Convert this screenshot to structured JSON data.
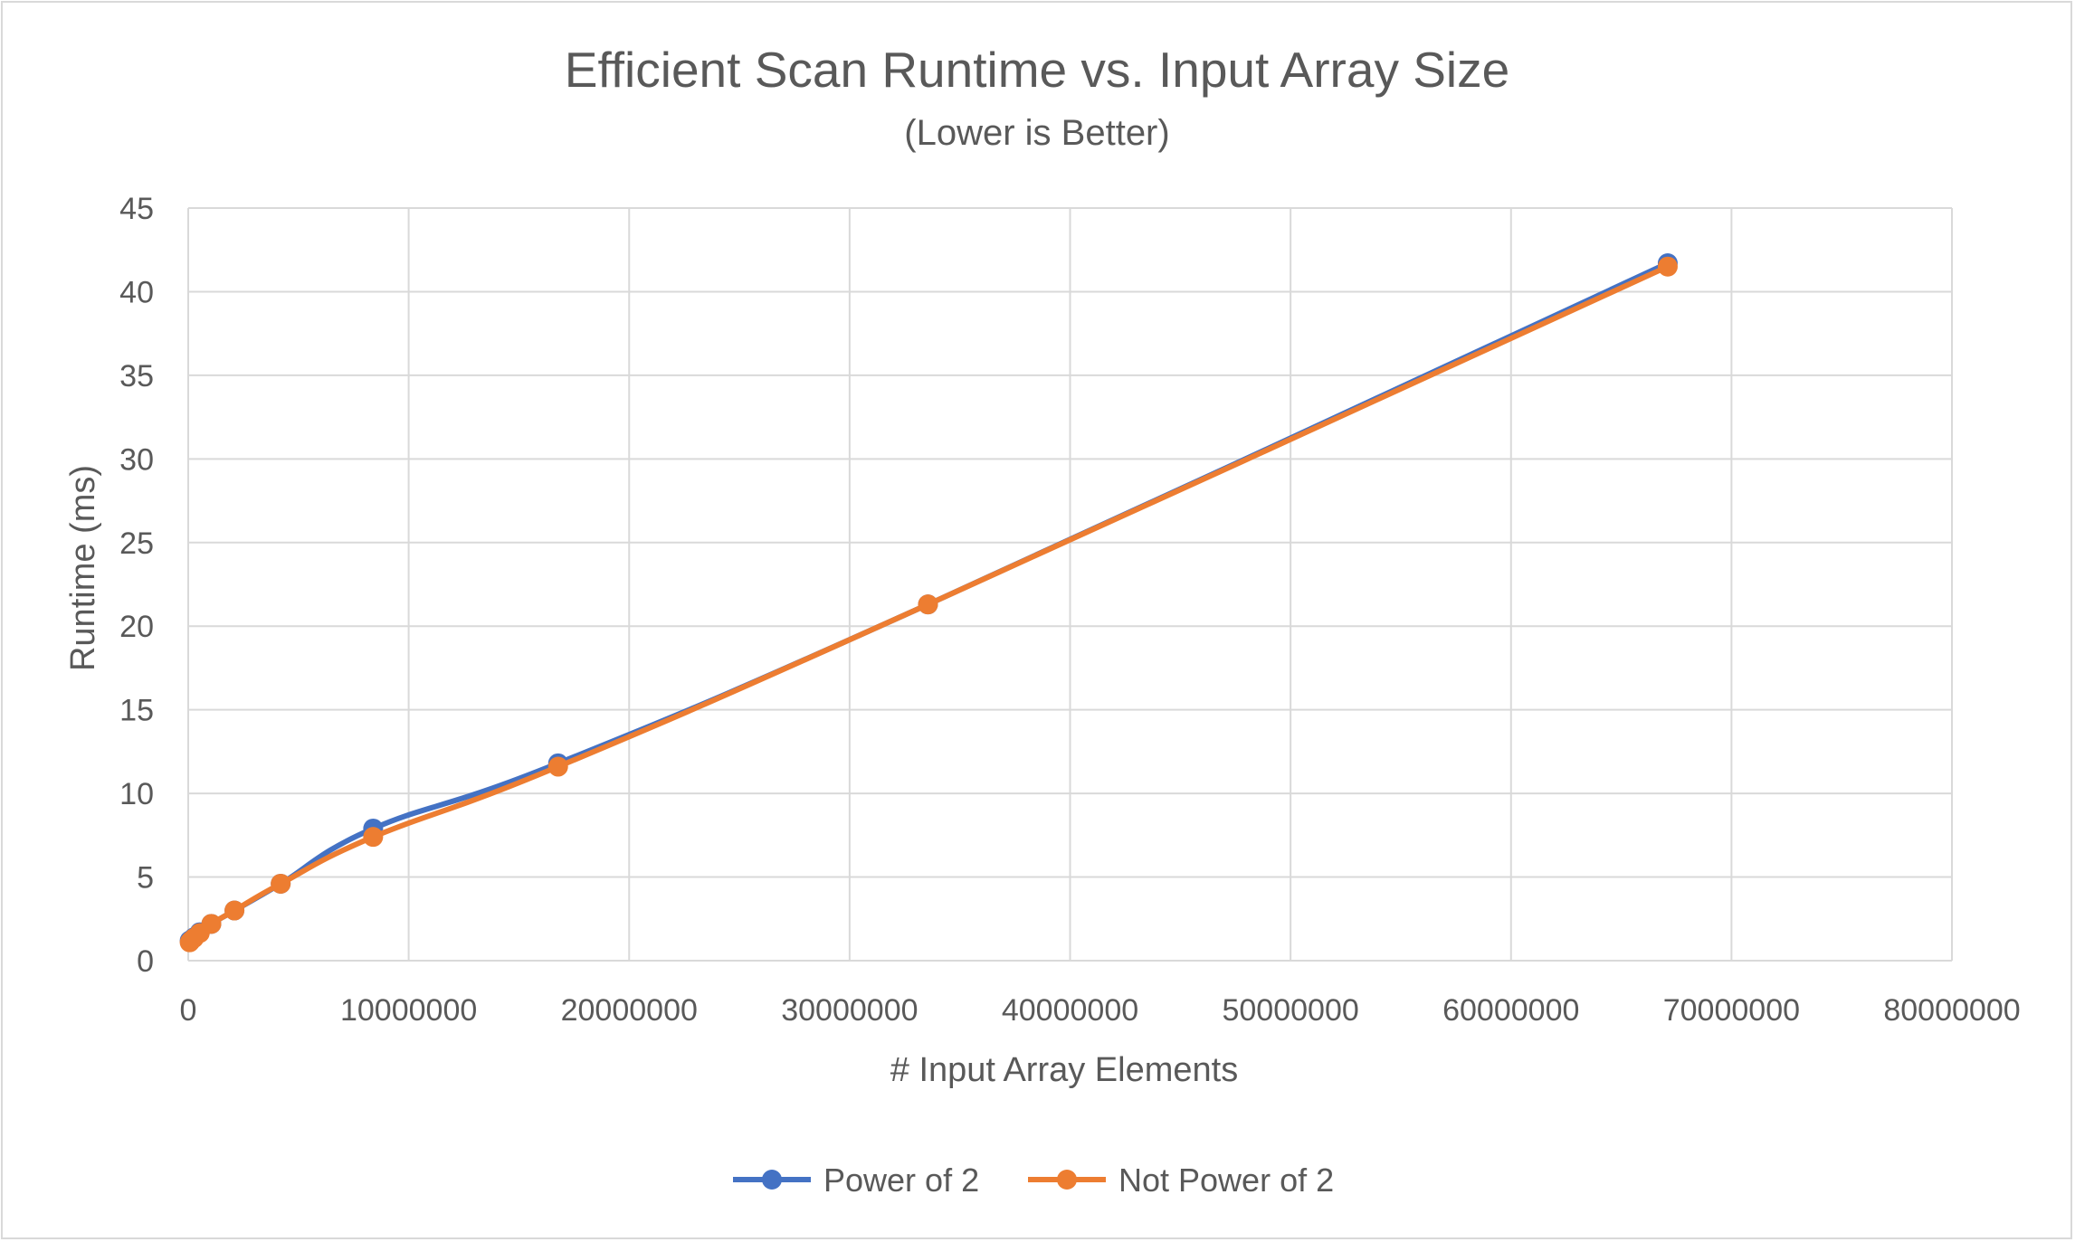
{
  "chart_data": {
    "type": "line",
    "title": "Efficient Scan Runtime vs. Input Array Size",
    "subtitle": "(Lower is Better)",
    "xlabel": "# Input Array Elements",
    "ylabel": "Runtime (ms)",
    "xlim": [
      0,
      80000000
    ],
    "ylim": [
      0,
      45
    ],
    "xticks": [
      0,
      10000000,
      20000000,
      30000000,
      40000000,
      50000000,
      60000000,
      70000000,
      80000000
    ],
    "xtick_labels": [
      "0",
      "10000000",
      "20000000",
      "30000000",
      "40000000",
      "50000000",
      "60000000",
      "70000000",
      "80000000"
    ],
    "yticks": [
      0,
      5,
      10,
      15,
      20,
      25,
      30,
      35,
      40,
      45
    ],
    "ytick_labels": [
      "0",
      "5",
      "10",
      "15",
      "20",
      "25",
      "30",
      "35",
      "40",
      "45"
    ],
    "grid": true,
    "legend_position": "bottom",
    "series": [
      {
        "name": "Power of 2",
        "color": "#4472c4",
        "points": [
          [
            65536,
            1.2
          ],
          [
            131072,
            1.25
          ],
          [
            262144,
            1.4
          ],
          [
            524288,
            1.7
          ],
          [
            1048576,
            2.2
          ],
          [
            2097152,
            3.0
          ],
          [
            4194304,
            4.6
          ],
          [
            8388608,
            7.9
          ],
          [
            16777216,
            11.8
          ],
          [
            33554432,
            21.3
          ],
          [
            67108864,
            41.7
          ]
        ]
      },
      {
        "name": "Not Power of 2",
        "color": "#ed7d31",
        "points": [
          [
            65533,
            1.1
          ],
          [
            131069,
            1.2
          ],
          [
            262141,
            1.35
          ],
          [
            524285,
            1.65
          ],
          [
            1048573,
            2.2
          ],
          [
            2097149,
            3.0
          ],
          [
            4194301,
            4.6
          ],
          [
            8388605,
            7.4
          ],
          [
            16777213,
            11.6
          ],
          [
            33554429,
            21.3
          ],
          [
            67108861,
            41.5
          ]
        ]
      }
    ]
  }
}
